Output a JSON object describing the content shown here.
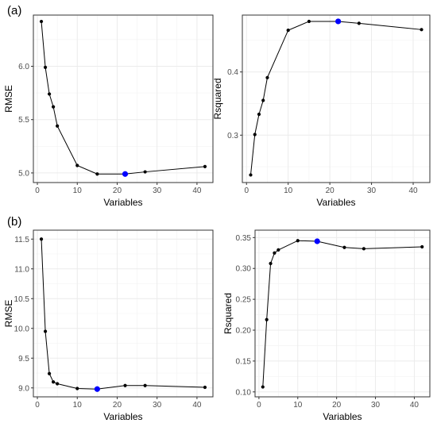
{
  "panel_labels": [
    "(a)",
    "(b)"
  ],
  "colors": {
    "line": "#000000",
    "point": "#000000",
    "highlight": "#0000ff",
    "grid": "#ebebeb",
    "border": "#333333",
    "panel_bg": "#ffffff"
  },
  "chart_data": [
    {
      "type": "line",
      "group": "(a)",
      "xlabel": "Variables",
      "ylabel": "RMSE",
      "xlim": [
        -1,
        44
      ],
      "ylim": [
        4.91,
        6.48
      ],
      "xticks": [
        0,
        10,
        20,
        30,
        40
      ],
      "yticks": [
        5.0,
        5.5,
        6.0
      ],
      "ytick_labels": [
        "5.0",
        "5.5",
        "6.0"
      ],
      "grid": true,
      "x": [
        1,
        2,
        3,
        4,
        5,
        10,
        15,
        22,
        27,
        42
      ],
      "y": [
        6.42,
        5.99,
        5.74,
        5.62,
        5.44,
        5.07,
        4.99,
        4.99,
        5.01,
        5.06
      ],
      "highlight_x": 22,
      "highlight_y": 4.99
    },
    {
      "type": "line",
      "group": "(a)",
      "xlabel": "Variables",
      "ylabel": "Rsquared",
      "xlim": [
        -1,
        44
      ],
      "ylim": [
        0.225,
        0.49
      ],
      "xticks": [
        0,
        10,
        20,
        30,
        40
      ],
      "yticks": [
        0.3,
        0.4
      ],
      "ytick_labels": [
        "0.3",
        "0.4"
      ],
      "grid": true,
      "x": [
        1,
        2,
        3,
        4,
        5,
        10,
        15,
        22,
        27,
        42
      ],
      "y": [
        0.237,
        0.301,
        0.333,
        0.355,
        0.391,
        0.466,
        0.48,
        0.48,
        0.477,
        0.467
      ],
      "highlight_x": 22,
      "highlight_y": 0.48
    },
    {
      "type": "line",
      "group": "(b)",
      "xlabel": "Variables",
      "ylabel": "RMSE",
      "xlim": [
        -1,
        44
      ],
      "ylim": [
        8.85,
        11.65
      ],
      "xticks": [
        0,
        10,
        20,
        30,
        40
      ],
      "yticks": [
        9.0,
        9.5,
        10.0,
        10.5,
        11.0,
        11.5
      ],
      "ytick_labels": [
        "9.0",
        "9.5",
        "10.0",
        "10.5",
        "11.0",
        "11.5"
      ],
      "grid": true,
      "x": [
        1,
        2,
        3,
        4,
        5,
        10,
        15,
        22,
        27,
        42
      ],
      "y": [
        11.5,
        9.95,
        9.24,
        9.1,
        9.07,
        8.99,
        8.98,
        9.04,
        9.04,
        9.01
      ],
      "highlight_x": 15,
      "highlight_y": 8.98
    },
    {
      "type": "line",
      "group": "(b)",
      "xlabel": "Variables",
      "ylabel": "Rsquared",
      "xlim": [
        -1,
        44
      ],
      "ylim": [
        0.092,
        0.362
      ],
      "xticks": [
        0,
        10,
        20,
        30,
        40
      ],
      "yticks": [
        0.1,
        0.15,
        0.2,
        0.25,
        0.3,
        0.35
      ],
      "ytick_labels": [
        "0.10",
        "0.15",
        "0.20",
        "0.25",
        "0.30",
        "0.35"
      ],
      "grid": true,
      "x": [
        1,
        2,
        3,
        4,
        5,
        10,
        15,
        22,
        27,
        42
      ],
      "y": [
        0.108,
        0.217,
        0.308,
        0.325,
        0.33,
        0.345,
        0.344,
        0.334,
        0.332,
        0.335
      ],
      "highlight_x": 15,
      "highlight_y": 0.344
    }
  ]
}
